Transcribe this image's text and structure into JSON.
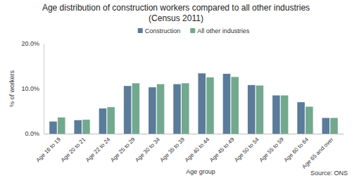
{
  "chart_data": {
    "type": "bar",
    "title": "Age distribution of construction workers compared to all other industries",
    "subtitle": "(Census 2011)",
    "x_label": "Age group",
    "y_label": "% of workers",
    "annotations": [
      "Source: ONS"
    ],
    "categories": [
      "Age 16 to 19",
      "Age 20 to 21",
      "Age 22 to 24",
      "Age 25 to 29",
      "Age 30 to 34",
      "Age 35 to 39",
      "Age 40 to 44",
      "Age 45 to 49",
      "Age 50 to 54",
      "Age 55 to 59",
      "Age 60 to 64",
      "Age 65 and over"
    ],
    "series": [
      {
        "name": "Construction",
        "color": "#5b7b9a",
        "values": [
          2.7,
          3.0,
          5.6,
          10.6,
          10.3,
          11.0,
          13.4,
          13.3,
          10.8,
          8.5,
          7.0,
          3.5
        ]
      },
      {
        "name": "All other industries",
        "color": "#72a98e",
        "values": [
          3.6,
          3.1,
          5.9,
          11.2,
          11.0,
          11.2,
          12.5,
          12.6,
          10.7,
          8.5,
          6.0,
          3.5
        ]
      }
    ],
    "ylim": [
      0,
      20
    ],
    "yticks": [
      {
        "value": 0,
        "label": "0.0%"
      },
      {
        "value": 10,
        "label": "10.0%"
      },
      {
        "value": 20,
        "label": "20.0%"
      }
    ],
    "grid": false,
    "legend": "top"
  }
}
